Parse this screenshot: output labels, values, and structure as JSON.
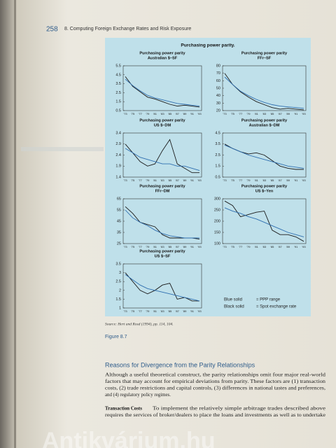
{
  "header": {
    "page_number": "258",
    "running_title": "8.  Computing Foreign Exchange Rates and Risk Exposure"
  },
  "figure": {
    "title": "Purchasing power parity.",
    "legend": [
      {
        "label": "Blue solid",
        "text": "= PPP range"
      },
      {
        "label": "Black solid",
        "text": "= Spot exchange rate"
      }
    ],
    "source": "Source: Hert and Rosd (1994), pp. 114, 104.",
    "caption": "Figure 8.7"
  },
  "chart_data": [
    {
      "type": "line",
      "title": "Purchasing power parity",
      "subtitle": "Australian $–SF",
      "categories": [
        "'73",
        "'75",
        "'77",
        "'79",
        "'81",
        "'83",
        "'85",
        "'87",
        "'89",
        "'91",
        "'93"
      ],
      "ylim": [
        0.5,
        5.5
      ],
      "yticks": [
        0.5,
        1.5,
        2.5,
        3.5,
        4.5,
        5.5
      ],
      "series": [
        {
          "color": "#1a1a1a",
          "values": [
            4.3,
            3.2,
            2.6,
            2.0,
            1.8,
            1.5,
            1.2,
            1.0,
            1.1,
            1.0,
            0.9
          ]
        },
        {
          "color": "#2f6fb0",
          "values": [
            4.0,
            3.3,
            2.7,
            2.2,
            1.9,
            1.7,
            1.5,
            1.3,
            1.2,
            1.1,
            1.0
          ]
        }
      ]
    },
    {
      "type": "line",
      "title": "Purchasing power parity",
      "subtitle": "FFr–SF",
      "categories": [
        "'73",
        "'75",
        "'77",
        "'79",
        "'81",
        "'83",
        "'85",
        "'87",
        "'89",
        "'91",
        "'93"
      ],
      "ylim": [
        20,
        80
      ],
      "yticks": [
        20,
        30,
        40,
        50,
        60,
        70,
        80
      ],
      "series": [
        {
          "color": "#1a1a1a",
          "values": [
            70,
            55,
            45,
            38,
            32,
            28,
            24,
            22,
            23,
            22,
            21
          ]
        },
        {
          "color": "#2f6fb0",
          "values": [
            65,
            55,
            46,
            40,
            35,
            31,
            28,
            26,
            25,
            24,
            23
          ]
        }
      ]
    },
    {
      "type": "line",
      "title": "Purchasing power parity",
      "subtitle": "US $–DM",
      "categories": [
        "'73",
        "'75",
        "'77",
        "'79",
        "'81",
        "'83",
        "'85",
        "'87",
        "'89",
        "'91",
        "'93"
      ],
      "ylim": [
        1.4,
        3.4
      ],
      "yticks": [
        1.4,
        1.9,
        2.4,
        2.9,
        3.4
      ],
      "series": [
        {
          "color": "#1a1a1a",
          "values": [
            2.9,
            2.5,
            2.1,
            1.9,
            2.0,
            2.6,
            3.1,
            2.0,
            1.8,
            1.6,
            1.6
          ]
        },
        {
          "color": "#2f6fb0",
          "values": [
            2.7,
            2.5,
            2.3,
            2.2,
            2.1,
            2.0,
            2.0,
            1.9,
            1.9,
            1.8,
            1.7
          ]
        }
      ]
    },
    {
      "type": "line",
      "title": "Purchasing power parity",
      "subtitle": "Australian $–DM",
      "categories": [
        "'73",
        "'75",
        "'77",
        "'79",
        "'81",
        "'83",
        "'85",
        "'87",
        "'89",
        "'91",
        "'93"
      ],
      "ylim": [
        0.5,
        4.5
      ],
      "yticks": [
        0.5,
        1.5,
        2.5,
        3.5,
        4.5
      ],
      "series": [
        {
          "color": "#1a1a1a",
          "values": [
            3.5,
            3.1,
            2.8,
            2.6,
            2.7,
            2.5,
            2.0,
            1.5,
            1.3,
            1.2,
            1.2
          ]
        },
        {
          "color": "#2f6fb0",
          "values": [
            3.4,
            3.1,
            2.8,
            2.5,
            2.3,
            2.1,
            1.9,
            1.7,
            1.5,
            1.4,
            1.3
          ]
        }
      ]
    },
    {
      "type": "line",
      "title": "Purchasing power parity",
      "subtitle": "FFr–DM",
      "categories": [
        "'73",
        "'75",
        "'77",
        "'79",
        "'81",
        "'83",
        "'85",
        "'87",
        "'89",
        "'91",
        "'93"
      ],
      "ylim": [
        25,
        65
      ],
      "yticks": [
        25,
        35,
        45,
        55,
        65
      ],
      "series": [
        {
          "color": "#1a1a1a",
          "values": [
            58,
            52,
            44,
            42,
            40,
            33,
            30,
            30,
            30,
            30,
            29
          ]
        },
        {
          "color": "#2f6fb0",
          "values": [
            55,
            48,
            44,
            41,
            37,
            34,
            32,
            31,
            30,
            30,
            30
          ]
        }
      ]
    },
    {
      "type": "line",
      "title": "Purchasing power parity",
      "subtitle": "US $–Yen",
      "categories": [
        "'73",
        "'75",
        "'77",
        "'79",
        "'81",
        "'83",
        "'85",
        "'87",
        "'89",
        "'91",
        "'93"
      ],
      "ylim": [
        100,
        300
      ],
      "yticks": [
        100,
        150,
        200,
        250,
        300
      ],
      "series": [
        {
          "color": "#1a1a1a",
          "values": [
            290,
            270,
            220,
            230,
            240,
            245,
            160,
            140,
            140,
            130,
            110
          ]
        },
        {
          "color": "#2f6fb0",
          "values": [
            260,
            245,
            235,
            220,
            210,
            195,
            180,
            165,
            150,
            140,
            130
          ]
        }
      ]
    },
    {
      "type": "line",
      "title": "Purchasing power parity",
      "subtitle": "US $–SF",
      "categories": [
        "'73",
        "'75",
        "'77",
        "'79",
        "'81",
        "'83",
        "'85",
        "'87",
        "'89",
        "'91",
        "'93"
      ],
      "ylim": [
        1,
        3.5
      ],
      "yticks": [
        1,
        1.5,
        2,
        2.5,
        3,
        3.5
      ],
      "series": [
        {
          "color": "#1a1a1a",
          "values": [
            3.0,
            2.5,
            2.0,
            1.8,
            2.0,
            2.3,
            2.4,
            1.5,
            1.6,
            1.4,
            1.4
          ]
        },
        {
          "color": "#2f6fb0",
          "values": [
            2.9,
            2.6,
            2.3,
            2.1,
            2.0,
            1.9,
            1.8,
            1.7,
            1.6,
            1.5,
            1.4
          ]
        }
      ]
    }
  ],
  "section": {
    "heading": "Reasons for Divergence from the Parity Relationships",
    "paragraph": [
      "Although a useful theoretical construct, the parity relationships omit four major real-world",
      "factors that may account for empirical deviations from parity. These factors are (1) transaction",
      "costs, (2) trade restrictions and capital controls, (3) differences in national tastes and preferences,",
      "and (4) regulatory policy regimes."
    ],
    "subheading": "Transaction Costs",
    "subparagraph": [
      "To implement the relatively simple arbitrage trades described above",
      "requires the services of broker/dealers to place the loans and investments as well as to undertake"
    ]
  },
  "watermark": "Antikvárium.hu"
}
